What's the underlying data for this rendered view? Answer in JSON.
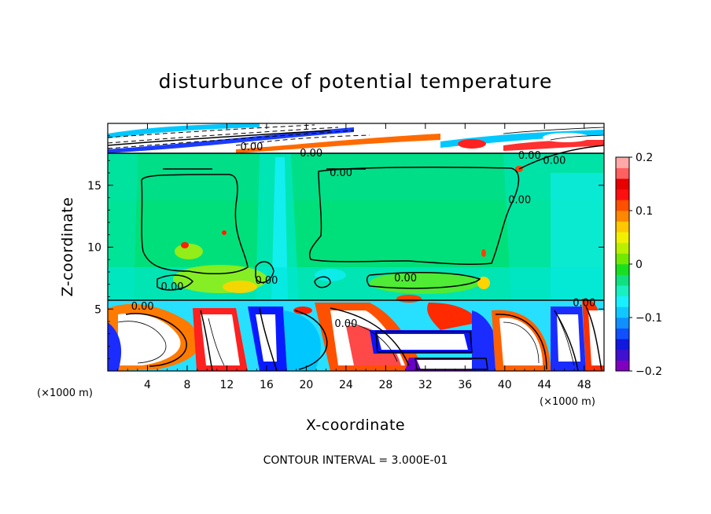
{
  "chart_data": {
    "type": "heatmap",
    "title": "disturbunce of potential temperature",
    "xlabel": "X-coordinate",
    "ylabel": "Z-coordinate",
    "x_unit": "(×1000 m)",
    "z_unit": "(×1000 m)",
    "xlim": [
      0,
      50
    ],
    "ylim": [
      0,
      20
    ],
    "x_ticks": [
      4,
      8,
      12,
      16,
      20,
      24,
      28,
      32,
      36,
      40,
      44,
      48
    ],
    "y_ticks": [
      5,
      10,
      15
    ],
    "colorbar": {
      "min": -0.2,
      "max": 0.2,
      "tick_values": [
        0.2,
        0.1,
        0,
        -0.1,
        -0.2
      ],
      "tick_labels": [
        "0.2",
        "0.1",
        "0",
        "−0.1",
        "−0.2"
      ]
    },
    "contour_interval_text": "CONTOUR INTERVAL = 3.000E-01",
    "contour_labels": [
      {
        "text": "0.00",
        "x": 14.5,
        "z": 18.1
      },
      {
        "text": "0.00",
        "x": 20.5,
        "z": 17.6
      },
      {
        "text": "0.00",
        "x": 23.5,
        "z": 16.0
      },
      {
        "text": "0.00",
        "x": 42.5,
        "z": 17.4
      },
      {
        "text": "0.00",
        "x": 45.0,
        "z": 17.0
      },
      {
        "text": "0.00",
        "x": 41.5,
        "z": 13.8
      },
      {
        "text": "0.00",
        "x": 30.0,
        "z": 7.5
      },
      {
        "text": "0.00",
        "x": 6.5,
        "z": 6.8
      },
      {
        "text": "0.00",
        "x": 16.0,
        "z": 7.3
      },
      {
        "text": "0.00",
        "x": 3.5,
        "z": 5.2
      },
      {
        "text": "0.00",
        "x": 24.0,
        "z": 3.8
      },
      {
        "text": "0.00",
        "x": 48.0,
        "z": 5.5
      }
    ]
  }
}
